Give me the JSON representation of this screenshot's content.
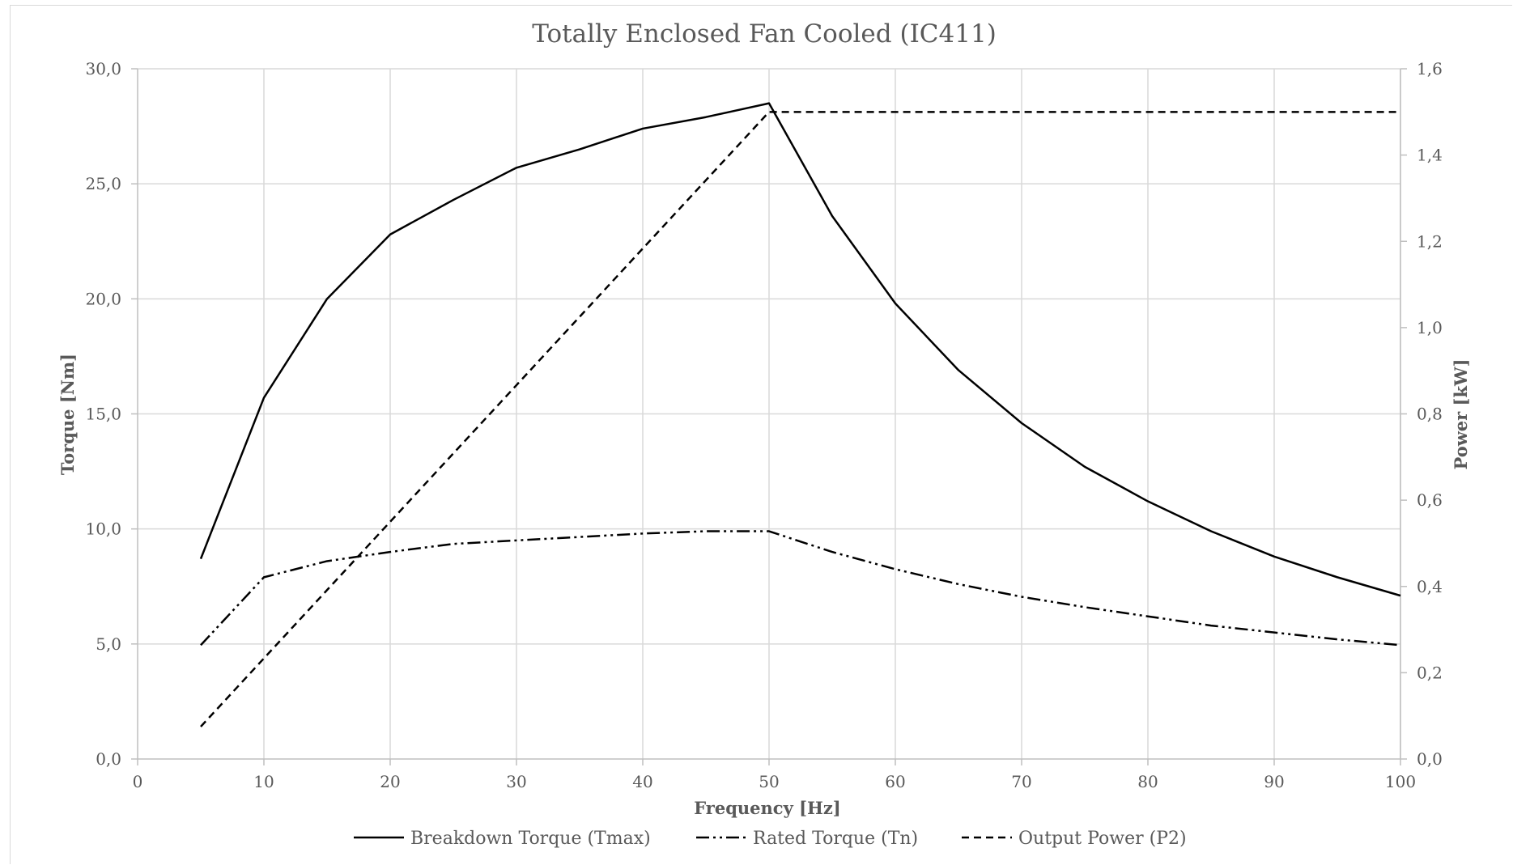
{
  "chart_data": {
    "type": "line",
    "title": "Totally Enclosed Fan Cooled (IC411)",
    "xlabel": "Frequency [Hz]",
    "ylabel": "Torque [Nm]",
    "y2label": "Power [kW]",
    "xlim": [
      0,
      100
    ],
    "ylim": [
      0,
      30
    ],
    "y2lim": [
      0,
      1.6
    ],
    "x_ticks": [
      "0",
      "10",
      "20",
      "30",
      "40",
      "50",
      "60",
      "70",
      "80",
      "90",
      "100"
    ],
    "y_ticks": [
      "0,0",
      "5,0",
      "10,0",
      "15,0",
      "20,0",
      "25,0",
      "30,0"
    ],
    "y2_ticks": [
      "0,0",
      "0,2",
      "0,4",
      "0,6",
      "0,8",
      "1,0",
      "1,2",
      "1,4",
      "1,6"
    ],
    "grid": true,
    "legend_position": "bottom",
    "colors": {
      "series": "#000000",
      "grid": "#d9d9d9",
      "text": "#595959"
    },
    "series": [
      {
        "name": "Breakdown Torque (Tmax)",
        "axis": "left",
        "dash": "solid",
        "x": [
          5,
          10,
          15,
          20,
          25,
          30,
          35,
          40,
          45,
          50,
          55,
          60,
          65,
          70,
          75,
          80,
          85,
          90,
          95,
          100
        ],
        "values": [
          8.7,
          15.7,
          20.0,
          22.8,
          24.3,
          25.7,
          26.5,
          27.4,
          27.9,
          28.5,
          23.6,
          19.8,
          16.9,
          14.6,
          12.7,
          11.2,
          9.9,
          8.8,
          7.9,
          7.1
        ]
      },
      {
        "name": "Rated Torque (Tn)",
        "axis": "left",
        "dash": "dashdotdot",
        "x": [
          5,
          10,
          15,
          20,
          25,
          30,
          35,
          40,
          45,
          50,
          55,
          60,
          65,
          70,
          75,
          80,
          85,
          90,
          95,
          100
        ],
        "values": [
          4.95,
          7.9,
          8.6,
          9.0,
          9.35,
          9.5,
          9.65,
          9.8,
          9.9,
          9.9,
          9.0,
          8.25,
          7.6,
          7.05,
          6.6,
          6.2,
          5.8,
          5.5,
          5.2,
          4.95
        ]
      },
      {
        "name": "Output Power (P2)",
        "axis": "right",
        "dash": "dashed",
        "x": [
          5,
          50,
          55,
          60,
          65,
          70,
          75,
          80,
          85,
          90,
          95,
          100
        ],
        "values": [
          0.075,
          1.5,
          1.5,
          1.5,
          1.5,
          1.5,
          1.5,
          1.5,
          1.5,
          1.5,
          1.5,
          1.5
        ]
      }
    ]
  }
}
